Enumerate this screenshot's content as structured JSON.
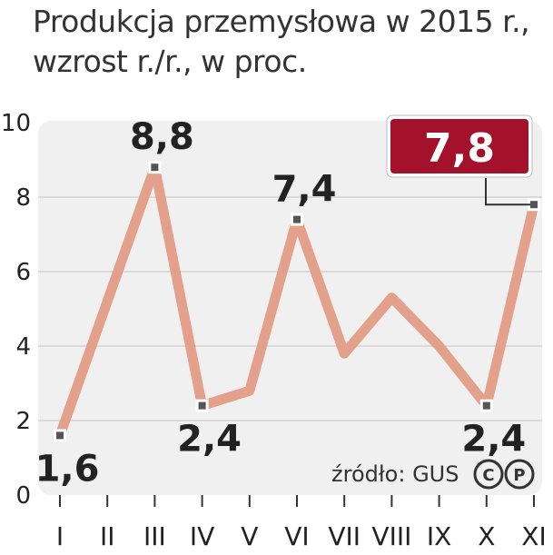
{
  "title_lines": [
    "Produkcja przemysłowa w 2015 r.,",
    "wzrost r./r., w proc."
  ],
  "source": "źródło: GUS",
  "copyright_icon": "copyright-c-p-icon",
  "colors": {
    "line": "#e3a08a",
    "plot_bg": "#f0f0f0",
    "callout_bg": "#a3112a",
    "marker": "#555555"
  },
  "chart_data": {
    "type": "line",
    "title": "Produkcja przemysłowa w 2015 r., wzrost r./r., w proc.",
    "xlabel": "",
    "ylabel": "",
    "categories": [
      "I",
      "II",
      "III",
      "IV",
      "V",
      "VI",
      "VII",
      "VIII",
      "IX",
      "X",
      "XI"
    ],
    "values": [
      1.6,
      5.2,
      8.8,
      2.4,
      2.8,
      7.4,
      3.8,
      5.3,
      4.0,
      2.4,
      7.8
    ],
    "y_ticks": [
      "0",
      "2",
      "4",
      "6",
      "8",
      "10"
    ],
    "ylim": [
      0,
      10
    ],
    "grid": true,
    "data_labels": [
      {
        "index": 0,
        "text": "1,6"
      },
      {
        "index": 2,
        "text": "8,8"
      },
      {
        "index": 3,
        "text": "2,4"
      },
      {
        "index": 5,
        "text": "7,4"
      },
      {
        "index": 9,
        "text": "2,4"
      }
    ],
    "highlight": {
      "index": 10,
      "text": "7,8"
    }
  }
}
